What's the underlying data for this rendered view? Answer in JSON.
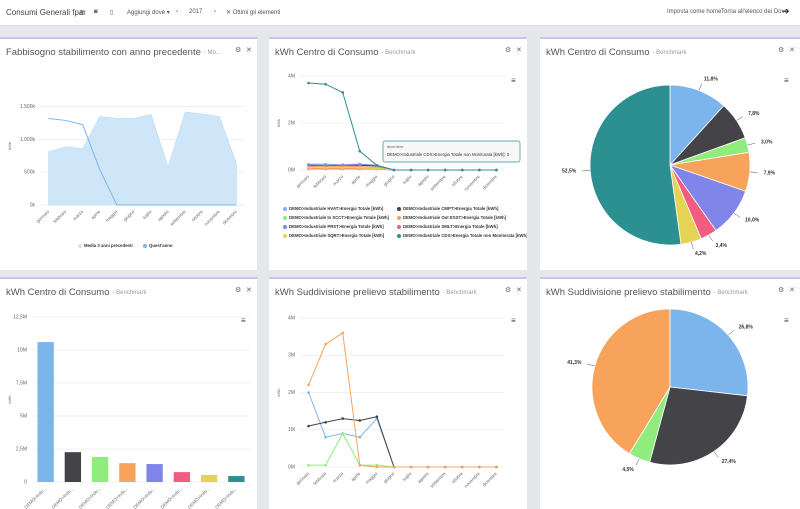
{
  "toolbar": {
    "title": "Consumi Generali fpa",
    "where": "Aggiungi dove ▾",
    "year": "2017",
    "filter": "Ottimi gli elementi",
    "home": "Imposta come home",
    "back": "Torna all'elenco dei Dove"
  },
  "chart_data": [
    {
      "type": "line",
      "title": "Fabbisogno stabilimento con anno precedente",
      "subtitle": "- Mo...",
      "ylabel": "kWh",
      "categories": [
        "gennaio",
        "febbraio",
        "marzo",
        "aprile",
        "maggio",
        "giugno",
        "luglio",
        "agosto",
        "settembre",
        "ottobre",
        "novembre",
        "dicembre"
      ],
      "ylim": [
        0,
        1800
      ],
      "yticks": [
        {
          "value": 0,
          "label": "0k"
        },
        {
          "value": 500,
          "label": "500k"
        },
        {
          "value": 1000,
          "label": "1.000k"
        },
        {
          "value": 1500,
          "label": "1.500k"
        }
      ],
      "grid": true,
      "legend": "bottom",
      "series": [
        {
          "name": "Media 3 anni precedenti",
          "type": "area",
          "color": "#cfe6f8",
          "values": [
            810,
            890,
            860,
            1350,
            1320,
            1320,
            1380,
            580,
            1420,
            1390,
            1350,
            630
          ]
        },
        {
          "name": "Quest'anno",
          "color": "#7cb5ec",
          "values": [
            1320,
            1290,
            1225,
            540,
            0,
            0,
            0,
            0,
            0,
            0,
            0,
            0
          ]
        }
      ]
    },
    {
      "type": "line",
      "title": "kWh Centro di Consumo",
      "subtitle": "- Benchmark",
      "ylabel": "kWh",
      "markers": true,
      "categories": [
        "gennaio",
        "febbraio",
        "marzo",
        "aprile",
        "maggio",
        "giugno",
        "luglio",
        "agosto",
        "settembre",
        "ottobre",
        "novembre",
        "dicembre"
      ],
      "ylim": [
        0,
        4
      ],
      "yticks": [
        {
          "value": 0,
          "label": "0M"
        },
        {
          "value": 2,
          "label": "2M"
        },
        {
          "value": 4,
          "label": "4M"
        }
      ],
      "grid": true,
      "legend": "bottom",
      "tooltip": {
        "header": "dicembre",
        "text": "DEMO>Industriale CDX>Energia Totale non Monitorata [kWh]: 0"
      },
      "series": [
        {
          "name": "DEMO>Industriale HVAT>Energia Totale [kWh]",
          "color": "#7cb5ec",
          "values": [
            0.25,
            0.25,
            0.22,
            0.2,
            0.15,
            0,
            0,
            0,
            0,
            0,
            0,
            0
          ]
        },
        {
          "name": "DEMO>Industriale CMPT>Energia Totale [kWh]",
          "color": "#434348",
          "values": [
            0.18,
            0.18,
            0.2,
            0.2,
            0.18,
            0,
            0,
            0,
            0,
            0,
            0,
            0
          ]
        },
        {
          "name": "DEMO>Industriale In SCCT>Energia Totale [kWh]",
          "color": "#90ed7d",
          "values": [
            0.1,
            0.1,
            0.1,
            0.1,
            0.08,
            0,
            0,
            0,
            0,
            0,
            0,
            0
          ]
        },
        {
          "name": "DEMO>Industriale Out ESST>Energia Totale [kWh]",
          "color": "#f7a35c",
          "values": [
            0.15,
            0.15,
            0.15,
            0.15,
            0.12,
            0,
            0,
            0,
            0,
            0,
            0,
            0
          ]
        },
        {
          "name": "DEMO>Industriale PRST>Energia Totale [kWh]",
          "color": "#8085e9",
          "values": [
            0.22,
            0.2,
            0.22,
            0.25,
            0.2,
            0,
            0,
            0,
            0,
            0,
            0,
            0
          ]
        },
        {
          "name": "DEMO>Industriale SMLT>Energia Totale [kWh]",
          "color": "#f15c80",
          "values": [
            0.05,
            0.05,
            0.05,
            0.05,
            0.04,
            0,
            0,
            0,
            0,
            0,
            0,
            0
          ]
        },
        {
          "name": "DEMO>Industriale SQRT>Energia Totale [kWh]",
          "color": "#e4d354",
          "values": [
            0.08,
            0.08,
            0.08,
            0.08,
            0.06,
            0,
            0,
            0,
            0,
            0,
            0,
            0
          ]
        },
        {
          "name": "DEMO>Industriale CDX>Energia Totale non Monitorata [kWh]",
          "color": "#2b908f",
          "values": [
            3.7,
            3.65,
            3.3,
            0.8,
            0.2,
            0,
            0,
            0,
            0,
            0,
            0,
            0
          ]
        }
      ]
    },
    {
      "type": "pie",
      "title": "kWh Centro di Consumo",
      "subtitle": "- Benchmark",
      "values": [
        11.8,
        7.8,
        3.0,
        7.9,
        10.0,
        3.4,
        4.2,
        52.5
      ],
      "value_labels": [
        "11,8%",
        "7,8%",
        "3,0%",
        "7,9%",
        "10,0%",
        "3,4%",
        "4,2%",
        "52,5%"
      ],
      "colors": [
        "#7cb5ec",
        "#434348",
        "#90ed7d",
        "#f7a35c",
        "#8085e9",
        "#f15c80",
        "#e4d354",
        "#2b908f"
      ]
    },
    {
      "type": "bar",
      "title": "kWh Centro di Consumo",
      "subtitle": "- Benchmark",
      "ylabel": "kWh",
      "categories": [
        "DEMO>Indu...",
        "DEMO>Indu...",
        "DEMO>Indu...",
        "DEMO>Indu...",
        "DEMO>Indu...",
        "DEMO>Indu...",
        "DEMO>Indu...",
        "DEMO>Indu..."
      ],
      "values": [
        10.6,
        2.26,
        1.9,
        1.43,
        1.36,
        0.75,
        0.53,
        0.45
      ],
      "colors": [
        "#7cb5ec",
        "#434348",
        "#90ed7d",
        "#f7a35c",
        "#8085e9",
        "#f15c80",
        "#e4d354",
        "#2b908f"
      ],
      "ylim": [
        0,
        12.5
      ],
      "yticks": [
        0,
        {
          "value": 2.5,
          "label": "2,5M"
        },
        {
          "value": 5,
          "label": "5M"
        },
        {
          "value": 7.5,
          "label": "7,5M"
        },
        {
          "value": 10,
          "label": "10M"
        },
        {
          "value": 12.5,
          "label": "12,5M"
        }
      ],
      "grid": true
    },
    {
      "type": "line",
      "title": "kWh Suddivisione prelievo stabilimento",
      "subtitle": "- Benchmark",
      "ylabel": "kWh",
      "markers": true,
      "categories": [
        "gennaio",
        "febbraio",
        "marzo",
        "aprile",
        "maggio",
        "giugno",
        "luglio",
        "agosto",
        "settembre",
        "ottobre",
        "novembre",
        "dicembre"
      ],
      "ylim": [
        0,
        4
      ],
      "yticks": [
        {
          "value": 0,
          "label": "0M"
        },
        {
          "value": 1,
          "label": "1M"
        },
        {
          "value": 2,
          "label": "2M"
        },
        {
          "value": 3,
          "label": "3M"
        },
        {
          "value": 4,
          "label": "4M"
        }
      ],
      "grid": true,
      "series": [
        {
          "color": "#7cb5ec",
          "values": [
            2.0,
            0.8,
            0.9,
            0.8,
            1.3,
            0,
            0,
            0,
            0,
            0,
            0,
            0
          ]
        },
        {
          "color": "#434348",
          "values": [
            1.1,
            1.2,
            1.3,
            1.25,
            1.35,
            0,
            0,
            0,
            0,
            0,
            0,
            0
          ]
        },
        {
          "color": "#90ed7d",
          "values": [
            0.05,
            0.05,
            0.9,
            0.05,
            0.05,
            0,
            0,
            0,
            0,
            0,
            0,
            0
          ]
        },
        {
          "color": "#f7a35c",
          "values": [
            2.2,
            3.3,
            3.6,
            0.05,
            0,
            0,
            0,
            0,
            0,
            0,
            0,
            0
          ]
        }
      ]
    },
    {
      "type": "pie",
      "title": "kWh Suddivisione prelievo stabilimento",
      "subtitle": "- Benchmark",
      "values": [
        26.8,
        27.4,
        4.5,
        41.3
      ],
      "value_labels": [
        "26,8%",
        "27,4%",
        "4,5%",
        "41,3%"
      ],
      "colors": [
        "#7cb5ec",
        "#434348",
        "#90ed7d",
        "#f7a35c"
      ]
    }
  ]
}
